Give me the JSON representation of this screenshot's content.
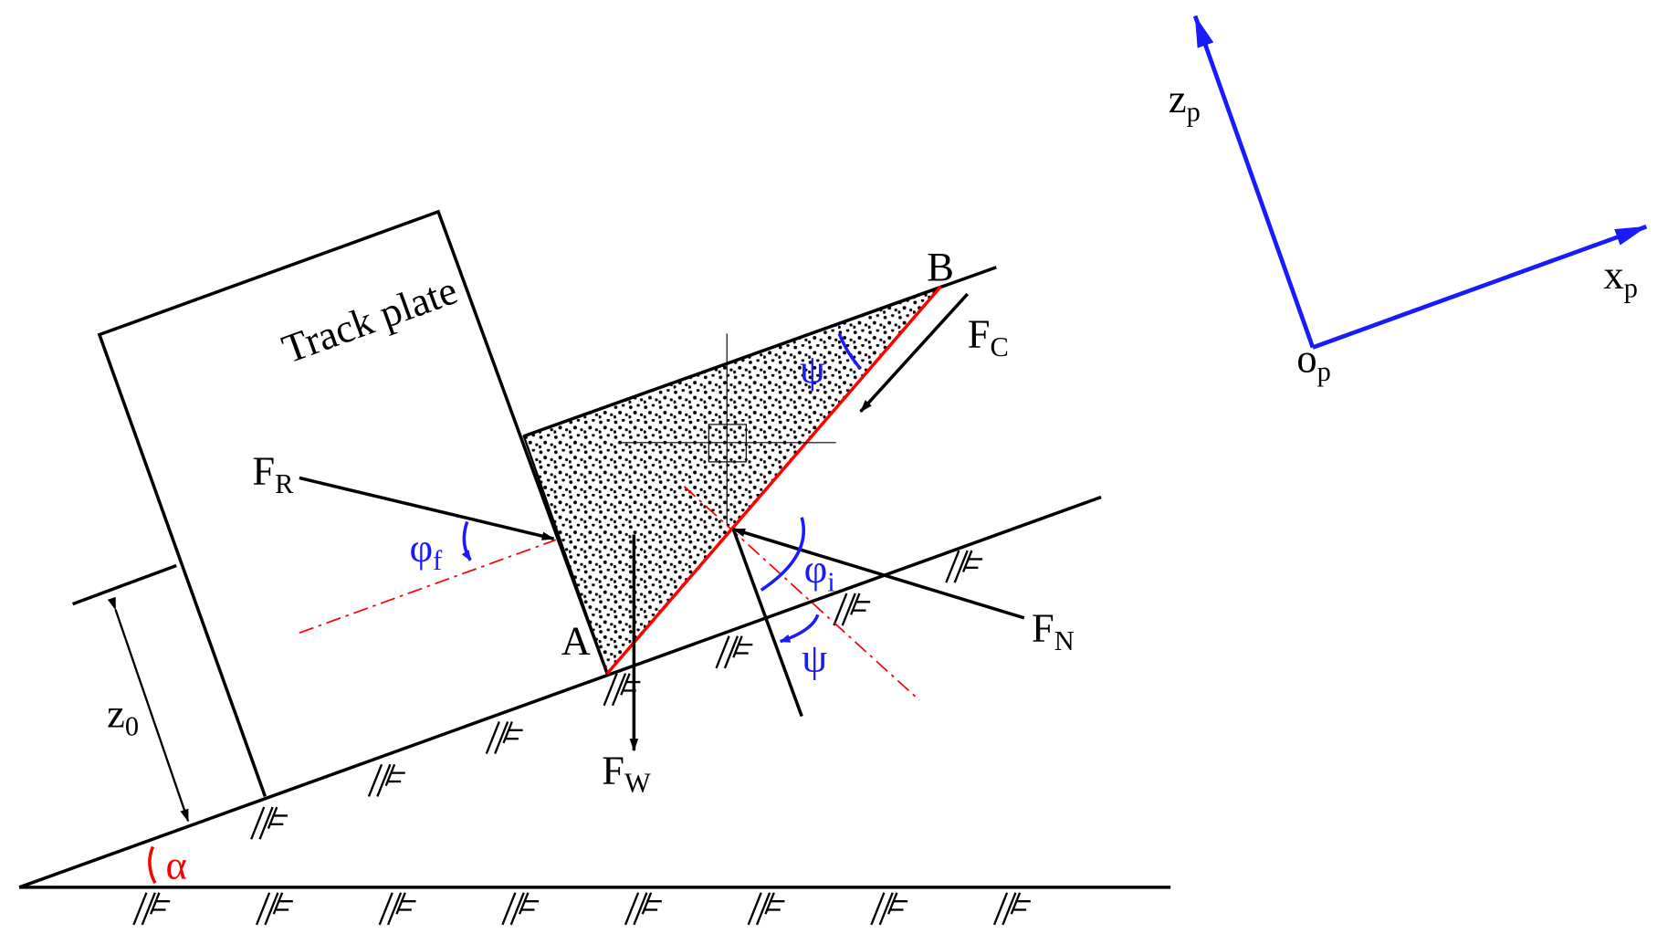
{
  "labels": {
    "track_plate": "Track plate",
    "f_r": {
      "base": "F",
      "sub": "R"
    },
    "phi_f": {
      "base": "φ",
      "sub": "f"
    },
    "point_a": "A",
    "point_b": "B",
    "f_c": {
      "base": "F",
      "sub": "C"
    },
    "psi_top": "ψ",
    "phi_i": {
      "base": "φ",
      "sub": "i"
    },
    "psi_bottom": "ψ",
    "f_n": {
      "base": "F",
      "sub": "N"
    },
    "f_w": {
      "base": "F",
      "sub": "W"
    },
    "z_0": {
      "base": "z",
      "sub": "0"
    },
    "alpha": "α",
    "z_p": {
      "base": "z",
      "sub": "p"
    },
    "x_p": {
      "base": "x",
      "sub": "p"
    },
    "o_p": {
      "base": "o",
      "sub": "p"
    }
  }
}
